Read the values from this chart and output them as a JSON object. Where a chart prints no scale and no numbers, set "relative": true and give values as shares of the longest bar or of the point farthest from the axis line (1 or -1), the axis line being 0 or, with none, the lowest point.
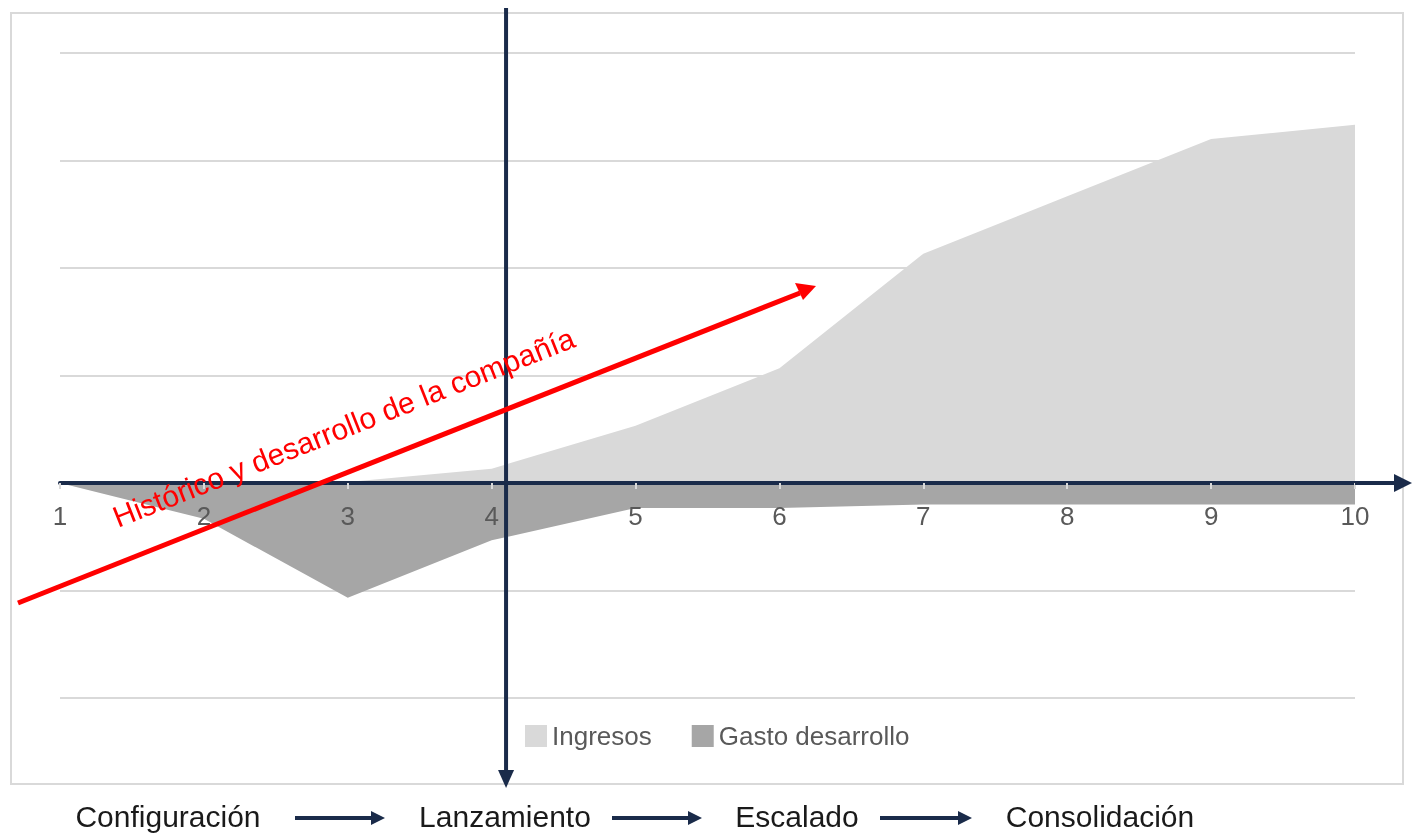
{
  "chart_data": {
    "type": "area",
    "relative": true,
    "x": [
      1,
      2,
      3,
      4,
      5,
      6,
      7,
      8,
      9,
      10
    ],
    "xlim": [
      1,
      10
    ],
    "xticks": [
      1,
      2,
      3,
      4,
      5,
      6,
      7,
      8,
      9,
      10
    ],
    "series": [
      {
        "name": "Ingresos",
        "color": "#d9d9d9",
        "values": [
          0,
          0,
          0.003,
          0.04,
          0.16,
          0.32,
          0.64,
          0.8,
          0.96,
          1
        ]
      },
      {
        "name": "Gasto desarrollo",
        "color": "#a6a6a6",
        "values": [
          0,
          -0.1,
          -0.32,
          -0.16,
          -0.07,
          -0.07,
          -0.06,
          -0.06,
          -0.06,
          -0.06
        ]
      }
    ],
    "ref_lines": [
      {
        "axis": "x",
        "value": 4.1,
        "color": "#1a2b4a"
      }
    ],
    "grid": "y",
    "legend": "bottom",
    "annotations": [
      "Histórico y desarrollo de la compañía",
      "Configuración",
      "Lanzamiento",
      "Escalado",
      "Consolidación"
    ]
  }
}
